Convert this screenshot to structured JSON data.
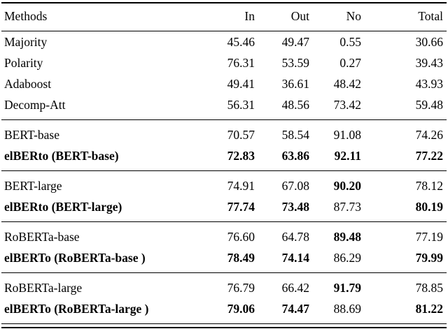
{
  "table": {
    "columns": [
      {
        "label": "Methods",
        "align": "left"
      },
      {
        "label": "In",
        "align": "right"
      },
      {
        "label": "Out",
        "align": "right"
      },
      {
        "label": "No",
        "align": "right"
      },
      {
        "label": "Total",
        "align": "right"
      }
    ],
    "groups": [
      {
        "rows": [
          {
            "method": "Majority",
            "method_bold": false,
            "values": [
              "45.46",
              "49.47",
              "0.55",
              "30.66"
            ],
            "value_bold": [
              false,
              false,
              false,
              false
            ]
          },
          {
            "method": "Polarity",
            "method_bold": false,
            "values": [
              "76.31",
              "53.59",
              "0.27",
              "39.43"
            ],
            "value_bold": [
              false,
              false,
              false,
              false
            ]
          },
          {
            "method": "Adaboost",
            "method_bold": false,
            "values": [
              "49.41",
              "36.61",
              "48.42",
              "43.93"
            ],
            "value_bold": [
              false,
              false,
              false,
              false
            ]
          },
          {
            "method": "Decomp-Att",
            "method_bold": false,
            "values": [
              "56.31",
              "48.56",
              "73.42",
              "59.48"
            ],
            "value_bold": [
              false,
              false,
              false,
              false
            ]
          }
        ]
      },
      {
        "rows": [
          {
            "method": "BERT-base",
            "method_bold": false,
            "values": [
              "70.57",
              "58.54",
              "91.08",
              "74.26"
            ],
            "value_bold": [
              false,
              false,
              false,
              false
            ]
          },
          {
            "method": "elBERto (BERT-base)",
            "method_bold": true,
            "values": [
              "72.83",
              "63.86",
              "92.11",
              "77.22"
            ],
            "value_bold": [
              true,
              true,
              true,
              true
            ]
          }
        ]
      },
      {
        "rows": [
          {
            "method": "BERT-large",
            "method_bold": false,
            "values": [
              "74.91",
              "67.08",
              "90.20",
              "78.12"
            ],
            "value_bold": [
              false,
              false,
              true,
              false
            ]
          },
          {
            "method": "elBERto (BERT-large)",
            "method_bold": true,
            "values": [
              "77.74",
              "73.48",
              "87.73",
              "80.19"
            ],
            "value_bold": [
              true,
              true,
              false,
              true
            ]
          }
        ]
      },
      {
        "rows": [
          {
            "method": "RoBERTa-base",
            "method_bold": false,
            "values": [
              "76.60",
              "64.78",
              "89.48",
              "77.19"
            ],
            "value_bold": [
              false,
              false,
              true,
              false
            ]
          },
          {
            "method": "elBERTo (RoBERTa-base )",
            "method_bold": true,
            "values": [
              "78.49",
              "74.14",
              "86.29",
              "79.99"
            ],
            "value_bold": [
              true,
              true,
              false,
              true
            ]
          }
        ]
      },
      {
        "rows": [
          {
            "method": "RoBERTa-large",
            "method_bold": false,
            "values": [
              "76.79",
              "66.42",
              "91.79",
              "78.85"
            ],
            "value_bold": [
              false,
              false,
              true,
              false
            ]
          },
          {
            "method": "elBERTo (RoBERTa-large )",
            "method_bold": true,
            "values": [
              "79.06",
              "74.47",
              "88.69",
              "81.22"
            ],
            "value_bold": [
              true,
              true,
              false,
              true
            ]
          }
        ]
      }
    ]
  }
}
